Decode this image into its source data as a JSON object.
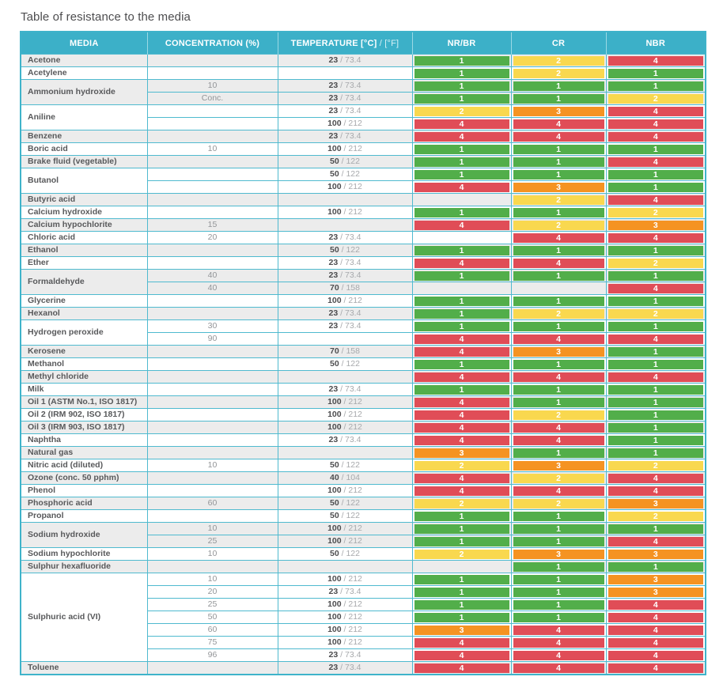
{
  "title": "Table of resistance to the media",
  "colors": {
    "header_bg": "#3cb0c8",
    "grid_border": "#4fbacf",
    "row_stripe_gray": "#ececec",
    "row_stripe_white": "#ffffff",
    "media_text": "#58595b",
    "secondary_text": "#939598"
  },
  "rating_colors": {
    "1": "#52ae4a",
    "2": "#f9d84f",
    "3": "#f59322",
    "4": "#e04d57"
  },
  "table": {
    "header": {
      "media": "MEDIA",
      "concentration": "CONCENTRATION (%)",
      "temperature_main": "TEMPERATURE [°C]",
      "temperature_secondary": " / [°F]",
      "nr_br": "NR/BR",
      "cr": "CR",
      "nbr": "NBR"
    },
    "groups": [
      {
        "media": "Acetone",
        "rows": [
          {
            "conc": "",
            "temp_c": "23",
            "temp_f": "73.4",
            "ratings": [
              1,
              2,
              4
            ]
          }
        ]
      },
      {
        "media": "Acetylene",
        "rows": [
          {
            "conc": "",
            "temp_c": "",
            "temp_f": "",
            "ratings": [
              1,
              2,
              1
            ]
          }
        ]
      },
      {
        "media": "Ammonium hydroxide",
        "rows": [
          {
            "conc": "10",
            "temp_c": "23",
            "temp_f": "73.4",
            "ratings": [
              1,
              1,
              1
            ]
          },
          {
            "conc": "Conc.",
            "temp_c": "23",
            "temp_f": "73.4",
            "ratings": [
              1,
              1,
              2
            ]
          }
        ]
      },
      {
        "media": "Aniline",
        "rows": [
          {
            "conc": "",
            "temp_c": "23",
            "temp_f": "73.4",
            "ratings": [
              2,
              3,
              4
            ]
          },
          {
            "conc": "",
            "temp_c": "100",
            "temp_f": "212",
            "ratings": [
              4,
              4,
              4
            ]
          }
        ]
      },
      {
        "media": "Benzene",
        "rows": [
          {
            "conc": "",
            "temp_c": "23",
            "temp_f": "73.4",
            "ratings": [
              4,
              4,
              4
            ]
          }
        ]
      },
      {
        "media": "Boric acid",
        "rows": [
          {
            "conc": "10",
            "temp_c": "100",
            "temp_f": "212",
            "ratings": [
              1,
              1,
              1
            ]
          }
        ]
      },
      {
        "media": "Brake fluid (vegetable)",
        "rows": [
          {
            "conc": "",
            "temp_c": "50",
            "temp_f": "122",
            "ratings": [
              1,
              1,
              4
            ]
          }
        ]
      },
      {
        "media": "Butanol",
        "rows": [
          {
            "conc": "",
            "temp_c": "50",
            "temp_f": "122",
            "ratings": [
              1,
              1,
              1
            ]
          },
          {
            "conc": "",
            "temp_c": "100",
            "temp_f": "212",
            "ratings": [
              4,
              3,
              1
            ]
          }
        ]
      },
      {
        "media": "Butyric acid",
        "rows": [
          {
            "conc": "",
            "temp_c": "",
            "temp_f": "",
            "ratings": [
              null,
              2,
              4
            ]
          }
        ]
      },
      {
        "media": "Calcium hydroxide",
        "rows": [
          {
            "conc": "",
            "temp_c": "100",
            "temp_f": "212",
            "ratings": [
              1,
              1,
              2
            ]
          }
        ]
      },
      {
        "media": "Calcium hypochlorite",
        "rows": [
          {
            "conc": "15",
            "temp_c": "",
            "temp_f": "",
            "ratings": [
              4,
              2,
              3
            ]
          }
        ]
      },
      {
        "media": "Chloric acid",
        "rows": [
          {
            "conc": "20",
            "temp_c": "23",
            "temp_f": "73.4",
            "ratings": [
              null,
              4,
              4
            ]
          }
        ]
      },
      {
        "media": "Ethanol",
        "rows": [
          {
            "conc": "",
            "temp_c": "50",
            "temp_f": "122",
            "ratings": [
              1,
              1,
              1
            ]
          }
        ]
      },
      {
        "media": "Ether",
        "rows": [
          {
            "conc": "",
            "temp_c": "23",
            "temp_f": "73.4",
            "ratings": [
              4,
              4,
              2
            ]
          }
        ]
      },
      {
        "media": "Formaldehyde",
        "rows": [
          {
            "conc": "40",
            "temp_c": "23",
            "temp_f": "73.4",
            "ratings": [
              1,
              1,
              1
            ]
          },
          {
            "conc": "40",
            "temp_c": "70",
            "temp_f": "158",
            "ratings": [
              null,
              null,
              4
            ]
          }
        ]
      },
      {
        "media": "Glycerine",
        "rows": [
          {
            "conc": "",
            "temp_c": "100",
            "temp_f": "212",
            "ratings": [
              1,
              1,
              1
            ]
          }
        ]
      },
      {
        "media": "Hexanol",
        "rows": [
          {
            "conc": "",
            "temp_c": "23",
            "temp_f": "73.4",
            "ratings": [
              1,
              2,
              2
            ]
          }
        ]
      },
      {
        "media": "Hydrogen peroxide",
        "rows": [
          {
            "conc": "30",
            "temp_c": "23",
            "temp_f": "73.4",
            "ratings": [
              1,
              1,
              1
            ]
          },
          {
            "conc": "90",
            "temp_c": "",
            "temp_f": "",
            "ratings": [
              4,
              4,
              4
            ]
          }
        ]
      },
      {
        "media": "Kerosene",
        "rows": [
          {
            "conc": "",
            "temp_c": "70",
            "temp_f": "158",
            "ratings": [
              4,
              3,
              1
            ]
          }
        ]
      },
      {
        "media": "Methanol",
        "rows": [
          {
            "conc": "",
            "temp_c": "50",
            "temp_f": "122",
            "ratings": [
              1,
              1,
              1
            ]
          }
        ]
      },
      {
        "media": "Methyl chloride",
        "rows": [
          {
            "conc": "",
            "temp_c": "",
            "temp_f": "",
            "ratings": [
              4,
              4,
              4
            ]
          }
        ]
      },
      {
        "media": "Milk",
        "rows": [
          {
            "conc": "",
            "temp_c": "23",
            "temp_f": "73.4",
            "ratings": [
              1,
              1,
              1
            ]
          }
        ]
      },
      {
        "media": "Oil 1 (ASTM No.1, ISO 1817)",
        "rows": [
          {
            "conc": "",
            "temp_c": "100",
            "temp_f": "212",
            "ratings": [
              4,
              1,
              1
            ]
          }
        ]
      },
      {
        "media": "Oil 2 (IRM 902, ISO 1817)",
        "rows": [
          {
            "conc": "",
            "temp_c": "100",
            "temp_f": "212",
            "ratings": [
              4,
              2,
              1
            ]
          }
        ]
      },
      {
        "media": "Oil 3 (IRM 903, ISO 1817)",
        "rows": [
          {
            "conc": "",
            "temp_c": "100",
            "temp_f": "212",
            "ratings": [
              4,
              4,
              1
            ]
          }
        ]
      },
      {
        "media": "Naphtha",
        "rows": [
          {
            "conc": "",
            "temp_c": "23",
            "temp_f": "73.4",
            "ratings": [
              4,
              4,
              1
            ]
          }
        ]
      },
      {
        "media": "Natural gas",
        "rows": [
          {
            "conc": "",
            "temp_c": "",
            "temp_f": "",
            "ratings": [
              3,
              1,
              1
            ]
          }
        ]
      },
      {
        "media": "Nitric acid (diluted)",
        "rows": [
          {
            "conc": "10",
            "temp_c": "50",
            "temp_f": "122",
            "ratings": [
              2,
              3,
              2
            ]
          }
        ]
      },
      {
        "media": "Ozone (conc. 50 pphm)",
        "rows": [
          {
            "conc": "",
            "temp_c": "40",
            "temp_f": "104",
            "ratings": [
              4,
              2,
              4
            ]
          }
        ]
      },
      {
        "media": "Phenol",
        "rows": [
          {
            "conc": "",
            "temp_c": "100",
            "temp_f": "212",
            "ratings": [
              4,
              4,
              4
            ]
          }
        ]
      },
      {
        "media": "Phosphoric acid",
        "rows": [
          {
            "conc": "60",
            "temp_c": "50",
            "temp_f": "122",
            "ratings": [
              2,
              2,
              3
            ]
          }
        ]
      },
      {
        "media": "Propanol",
        "rows": [
          {
            "conc": "",
            "temp_c": "50",
            "temp_f": "122",
            "ratings": [
              1,
              1,
              2
            ]
          }
        ]
      },
      {
        "media": "Sodium hydroxide",
        "rows": [
          {
            "conc": "10",
            "temp_c": "100",
            "temp_f": "212",
            "ratings": [
              1,
              1,
              1
            ]
          },
          {
            "conc": "25",
            "temp_c": "100",
            "temp_f": "212",
            "ratings": [
              1,
              1,
              4
            ]
          }
        ]
      },
      {
        "media": "Sodium hypochlorite",
        "rows": [
          {
            "conc": "10",
            "temp_c": "50",
            "temp_f": "122",
            "ratings": [
              2,
              3,
              3
            ]
          }
        ]
      },
      {
        "media": "Sulphur hexafluoride",
        "rows": [
          {
            "conc": "",
            "temp_c": "",
            "temp_f": "",
            "ratings": [
              null,
              1,
              1
            ]
          }
        ]
      },
      {
        "media": "Sulphuric acid (VI)",
        "rows": [
          {
            "conc": "10",
            "temp_c": "100",
            "temp_f": "212",
            "ratings": [
              1,
              1,
              3
            ]
          },
          {
            "conc": "20",
            "temp_c": "23",
            "temp_f": "73.4",
            "ratings": [
              1,
              1,
              3
            ]
          },
          {
            "conc": "25",
            "temp_c": "100",
            "temp_f": "212",
            "ratings": [
              1,
              1,
              4
            ]
          },
          {
            "conc": "50",
            "temp_c": "100",
            "temp_f": "212",
            "ratings": [
              1,
              1,
              4
            ]
          },
          {
            "conc": "60",
            "temp_c": "100",
            "temp_f": "212",
            "ratings": [
              3,
              4,
              4
            ]
          },
          {
            "conc": "75",
            "temp_c": "100",
            "temp_f": "212",
            "ratings": [
              4,
              4,
              4
            ]
          },
          {
            "conc": "96",
            "temp_c": "23",
            "temp_f": "73.4",
            "ratings": [
              4,
              4,
              4
            ]
          }
        ]
      },
      {
        "media": "Toluene",
        "rows": [
          {
            "conc": "",
            "temp_c": "23",
            "temp_f": "73.4",
            "ratings": [
              4,
              4,
              4
            ]
          }
        ]
      }
    ]
  }
}
